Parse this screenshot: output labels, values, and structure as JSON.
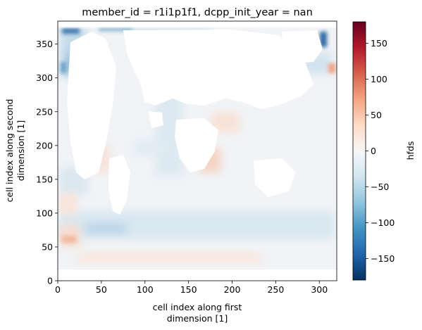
{
  "chart_data": {
    "type": "heatmap",
    "title": "member_id = r1i1p1f1, dcpp_init_year = nan",
    "xlabel_lines": [
      "cell index along first",
      "dimension [1]"
    ],
    "ylabel_lines": [
      "cell index along second",
      "dimension [1]"
    ],
    "xlim": [
      0,
      320
    ],
    "ylim": [
      0,
      384
    ],
    "x_ticks": [
      0,
      50,
      100,
      150,
      200,
      250,
      300
    ],
    "y_ticks": [
      0,
      50,
      100,
      150,
      200,
      250,
      300,
      350
    ],
    "grid": false,
    "colorbar": {
      "label": "hfds",
      "range": [
        -180,
        180
      ],
      "ticks": [
        -150,
        -100,
        -50,
        0,
        50,
        100,
        150
      ],
      "colormap": "RdBu_r",
      "colors": [
        "#053061",
        "#2166ac",
        "#4393c3",
        "#92c5de",
        "#d1e5f0",
        "#f7f7f7",
        "#fddbc7",
        "#f4a582",
        "#d6604d",
        "#b2182b",
        "#67001f"
      ]
    },
    "mask_color": "#ffffff"
  }
}
